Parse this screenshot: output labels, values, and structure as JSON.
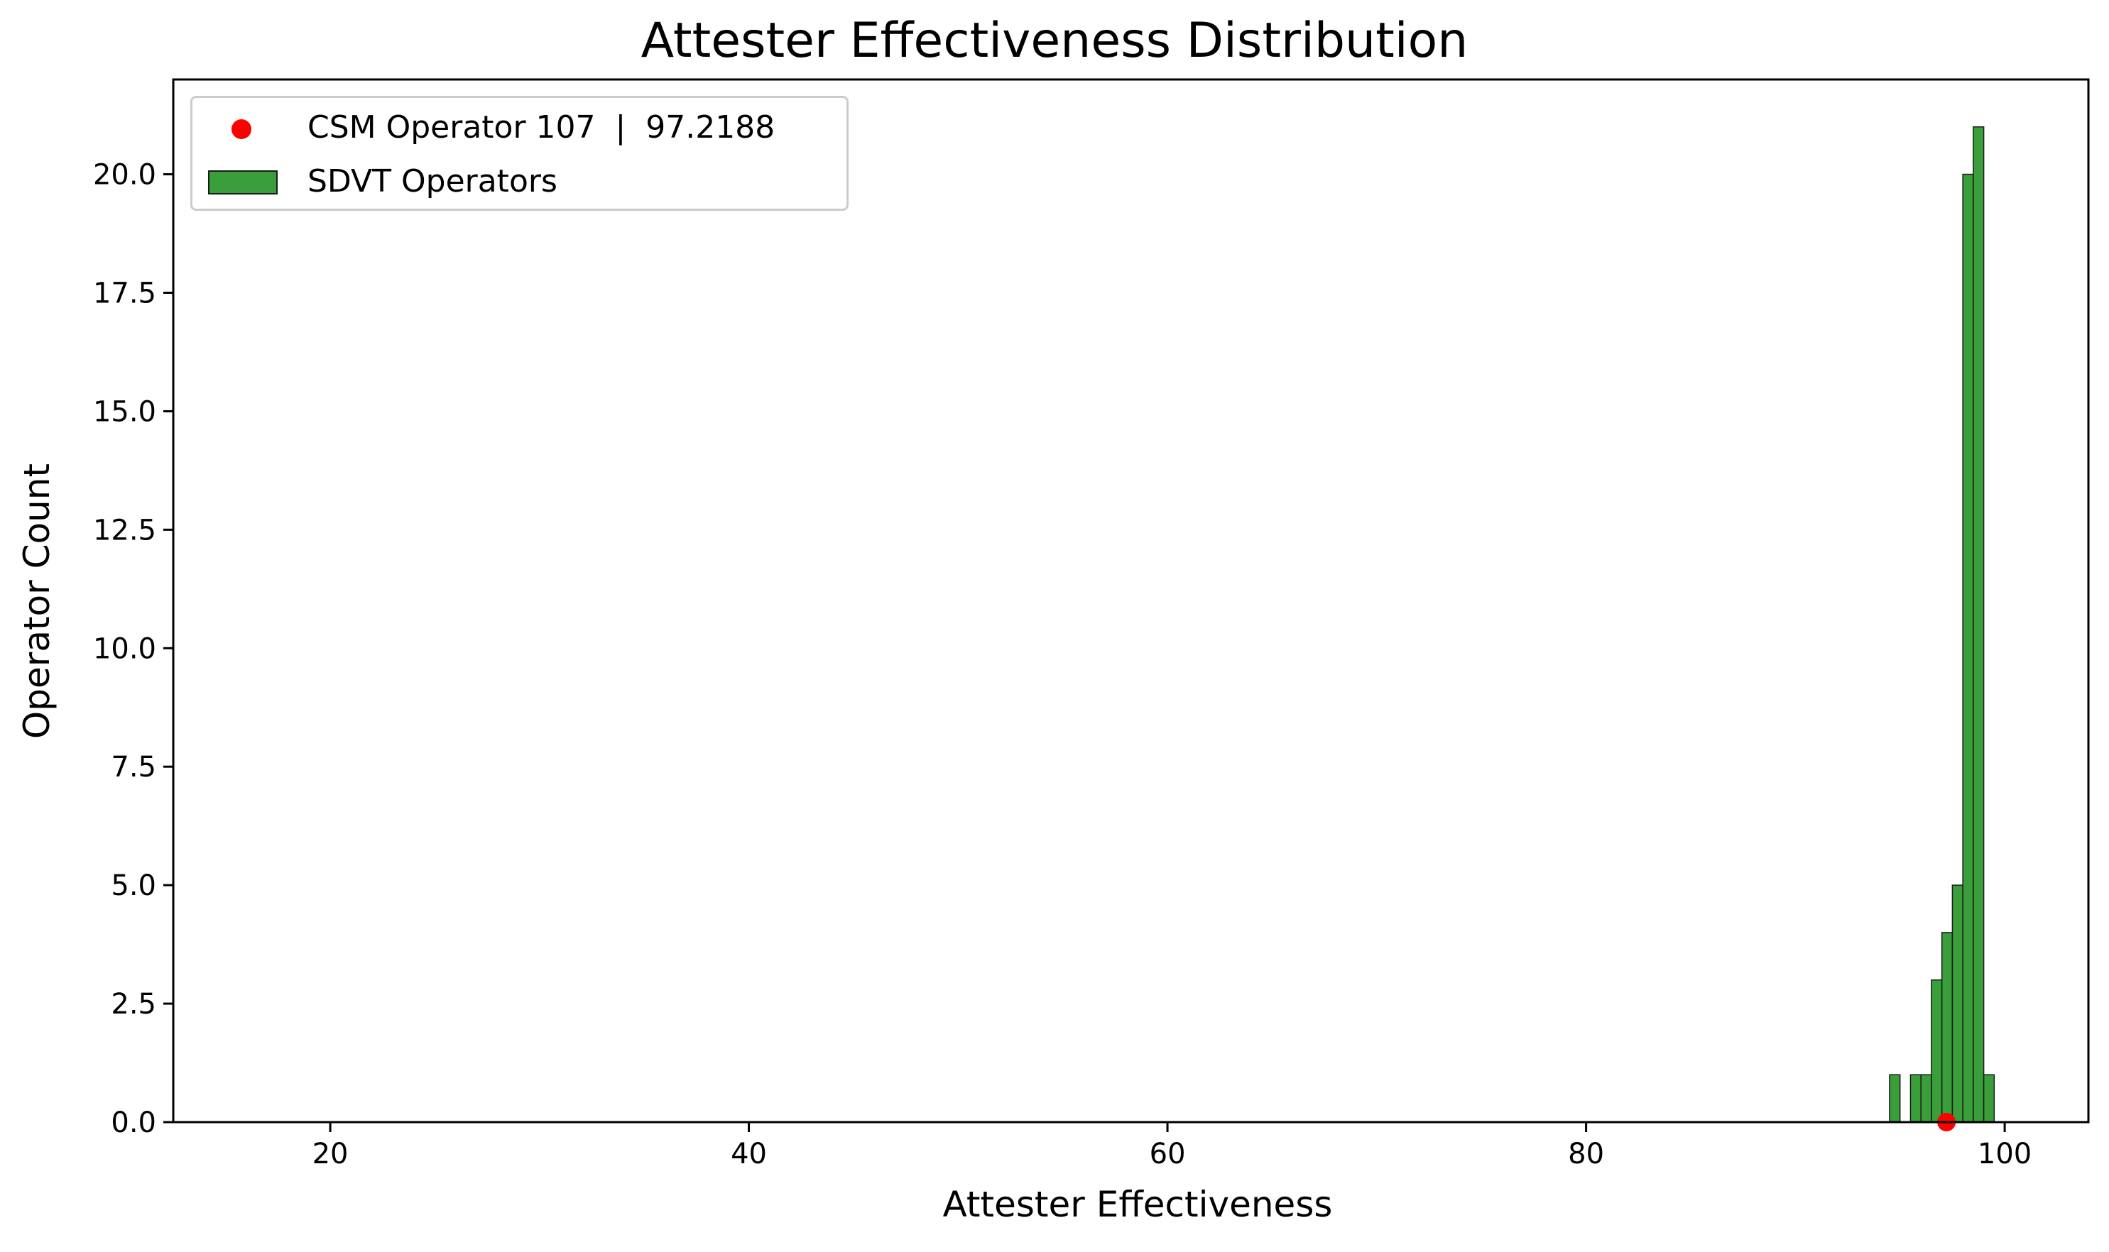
{
  "chart_data": {
    "type": "bar",
    "title": "Attester Effectiveness Distribution",
    "xlabel": "Attester Effectiveness",
    "ylabel": "Operator Count",
    "xlim": [
      12.5,
      104
    ],
    "ylim": [
      0,
      22
    ],
    "xticks": [
      20,
      40,
      60,
      80,
      100
    ],
    "xtick_labels": [
      "20",
      "40",
      "60",
      "80",
      "100"
    ],
    "yticks": [
      0,
      2.5,
      5,
      7.5,
      10,
      12.5,
      15,
      17.5,
      20
    ],
    "ytick_labels": [
      "0.0",
      "2.5",
      "5.0",
      "7.5",
      "10.0",
      "12.5",
      "15.0",
      "17.5",
      "20.0"
    ],
    "bin_width": 0.5,
    "bins": [
      {
        "x0": 94.5,
        "count": 1
      },
      {
        "x0": 95.0,
        "count": 0
      },
      {
        "x0": 95.5,
        "count": 1
      },
      {
        "x0": 96.0,
        "count": 1
      },
      {
        "x0": 96.5,
        "count": 3
      },
      {
        "x0": 97.0,
        "count": 4
      },
      {
        "x0": 97.5,
        "count": 5
      },
      {
        "x0": 98.0,
        "count": 20
      },
      {
        "x0": 98.5,
        "count": 21
      },
      {
        "x0": 99.0,
        "count": 1
      }
    ],
    "highlight_point": {
      "x": 97.2188,
      "y": 0
    },
    "grid": false,
    "legend_placement": "upper-left",
    "legend": [
      {
        "label": "CSM Operator 107  |  97.2188",
        "marker": "circle",
        "color": "#ff0000"
      },
      {
        "label": "SDVT Operators",
        "marker": "patch",
        "color": "#3a9e3a"
      }
    ],
    "colors": {
      "bars": "#3a9e3a",
      "bar_edge": "#1a1a1a",
      "point": "#ff0000"
    }
  }
}
